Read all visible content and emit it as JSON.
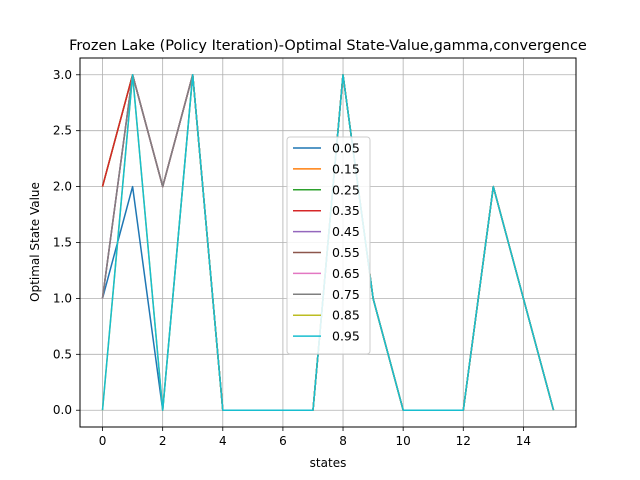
{
  "chart_data": {
    "type": "line",
    "title": "Frozen Lake (Policy Iteration)-Optimal State-Value,gamma,convergence",
    "xlabel": "states",
    "ylabel": "Optimal State Value",
    "xlim": [
      -0.75,
      15.75
    ],
    "ylim": [
      -0.15,
      3.15
    ],
    "xticks": [
      0,
      2,
      4,
      6,
      8,
      10,
      12,
      14
    ],
    "yticks": [
      0.0,
      0.5,
      1.0,
      1.5,
      2.0,
      2.5,
      3.0
    ],
    "ytick_labels": [
      "0.0",
      "0.5",
      "1.0",
      "1.5",
      "2.0",
      "2.5",
      "3.0"
    ],
    "grid": true,
    "legend_position": "center",
    "x": [
      0,
      1,
      2,
      3,
      4,
      5,
      6,
      7,
      8,
      9,
      10,
      11,
      12,
      13,
      14,
      15
    ],
    "series": [
      {
        "name": "0.05",
        "color": "#1f77b4",
        "values": [
          1,
          2,
          0,
          3,
          0,
          0,
          0,
          0,
          3,
          1,
          0,
          0,
          0,
          2,
          1,
          0
        ]
      },
      {
        "name": "0.15",
        "color": "#ff7f0e",
        "values": [
          2,
          3,
          2,
          3,
          0,
          0,
          0,
          0,
          3,
          1,
          0,
          0,
          0,
          2,
          1,
          0
        ]
      },
      {
        "name": "0.25",
        "color": "#2ca02c",
        "values": [
          2,
          3,
          2,
          3,
          0,
          0,
          0,
          0,
          3,
          1,
          0,
          0,
          0,
          2,
          1,
          0
        ]
      },
      {
        "name": "0.35",
        "color": "#d62728",
        "values": [
          2,
          3,
          2,
          3,
          0,
          0,
          0,
          0,
          3,
          1,
          0,
          0,
          0,
          2,
          1,
          0
        ]
      },
      {
        "name": "0.45",
        "color": "#9467bd",
        "values": [
          1,
          3,
          2,
          3,
          0,
          0,
          0,
          0,
          3,
          1,
          0,
          0,
          0,
          2,
          1,
          0
        ]
      },
      {
        "name": "0.55",
        "color": "#8c564b",
        "values": [
          1,
          3,
          2,
          3,
          0,
          0,
          0,
          0,
          3,
          1,
          0,
          0,
          0,
          2,
          1,
          0
        ]
      },
      {
        "name": "0.65",
        "color": "#e377c2",
        "values": [
          1,
          3,
          2,
          3,
          0,
          0,
          0,
          0,
          3,
          1,
          0,
          0,
          0,
          2,
          1,
          0
        ]
      },
      {
        "name": "0.75",
        "color": "#7f7f7f",
        "values": [
          1,
          3,
          2,
          3,
          0,
          0,
          0,
          0,
          3,
          1,
          0,
          0,
          0,
          2,
          1,
          0
        ]
      },
      {
        "name": "0.85",
        "color": "#bcbd22",
        "values": [
          0,
          3,
          0,
          3,
          0,
          0,
          0,
          0,
          3,
          1,
          0,
          0,
          0,
          2,
          1,
          0
        ]
      },
      {
        "name": "0.95",
        "color": "#17becf",
        "values": [
          0,
          3,
          0,
          3,
          0,
          0,
          0,
          0,
          3,
          1,
          0,
          0,
          0,
          2,
          1,
          0
        ]
      }
    ]
  }
}
